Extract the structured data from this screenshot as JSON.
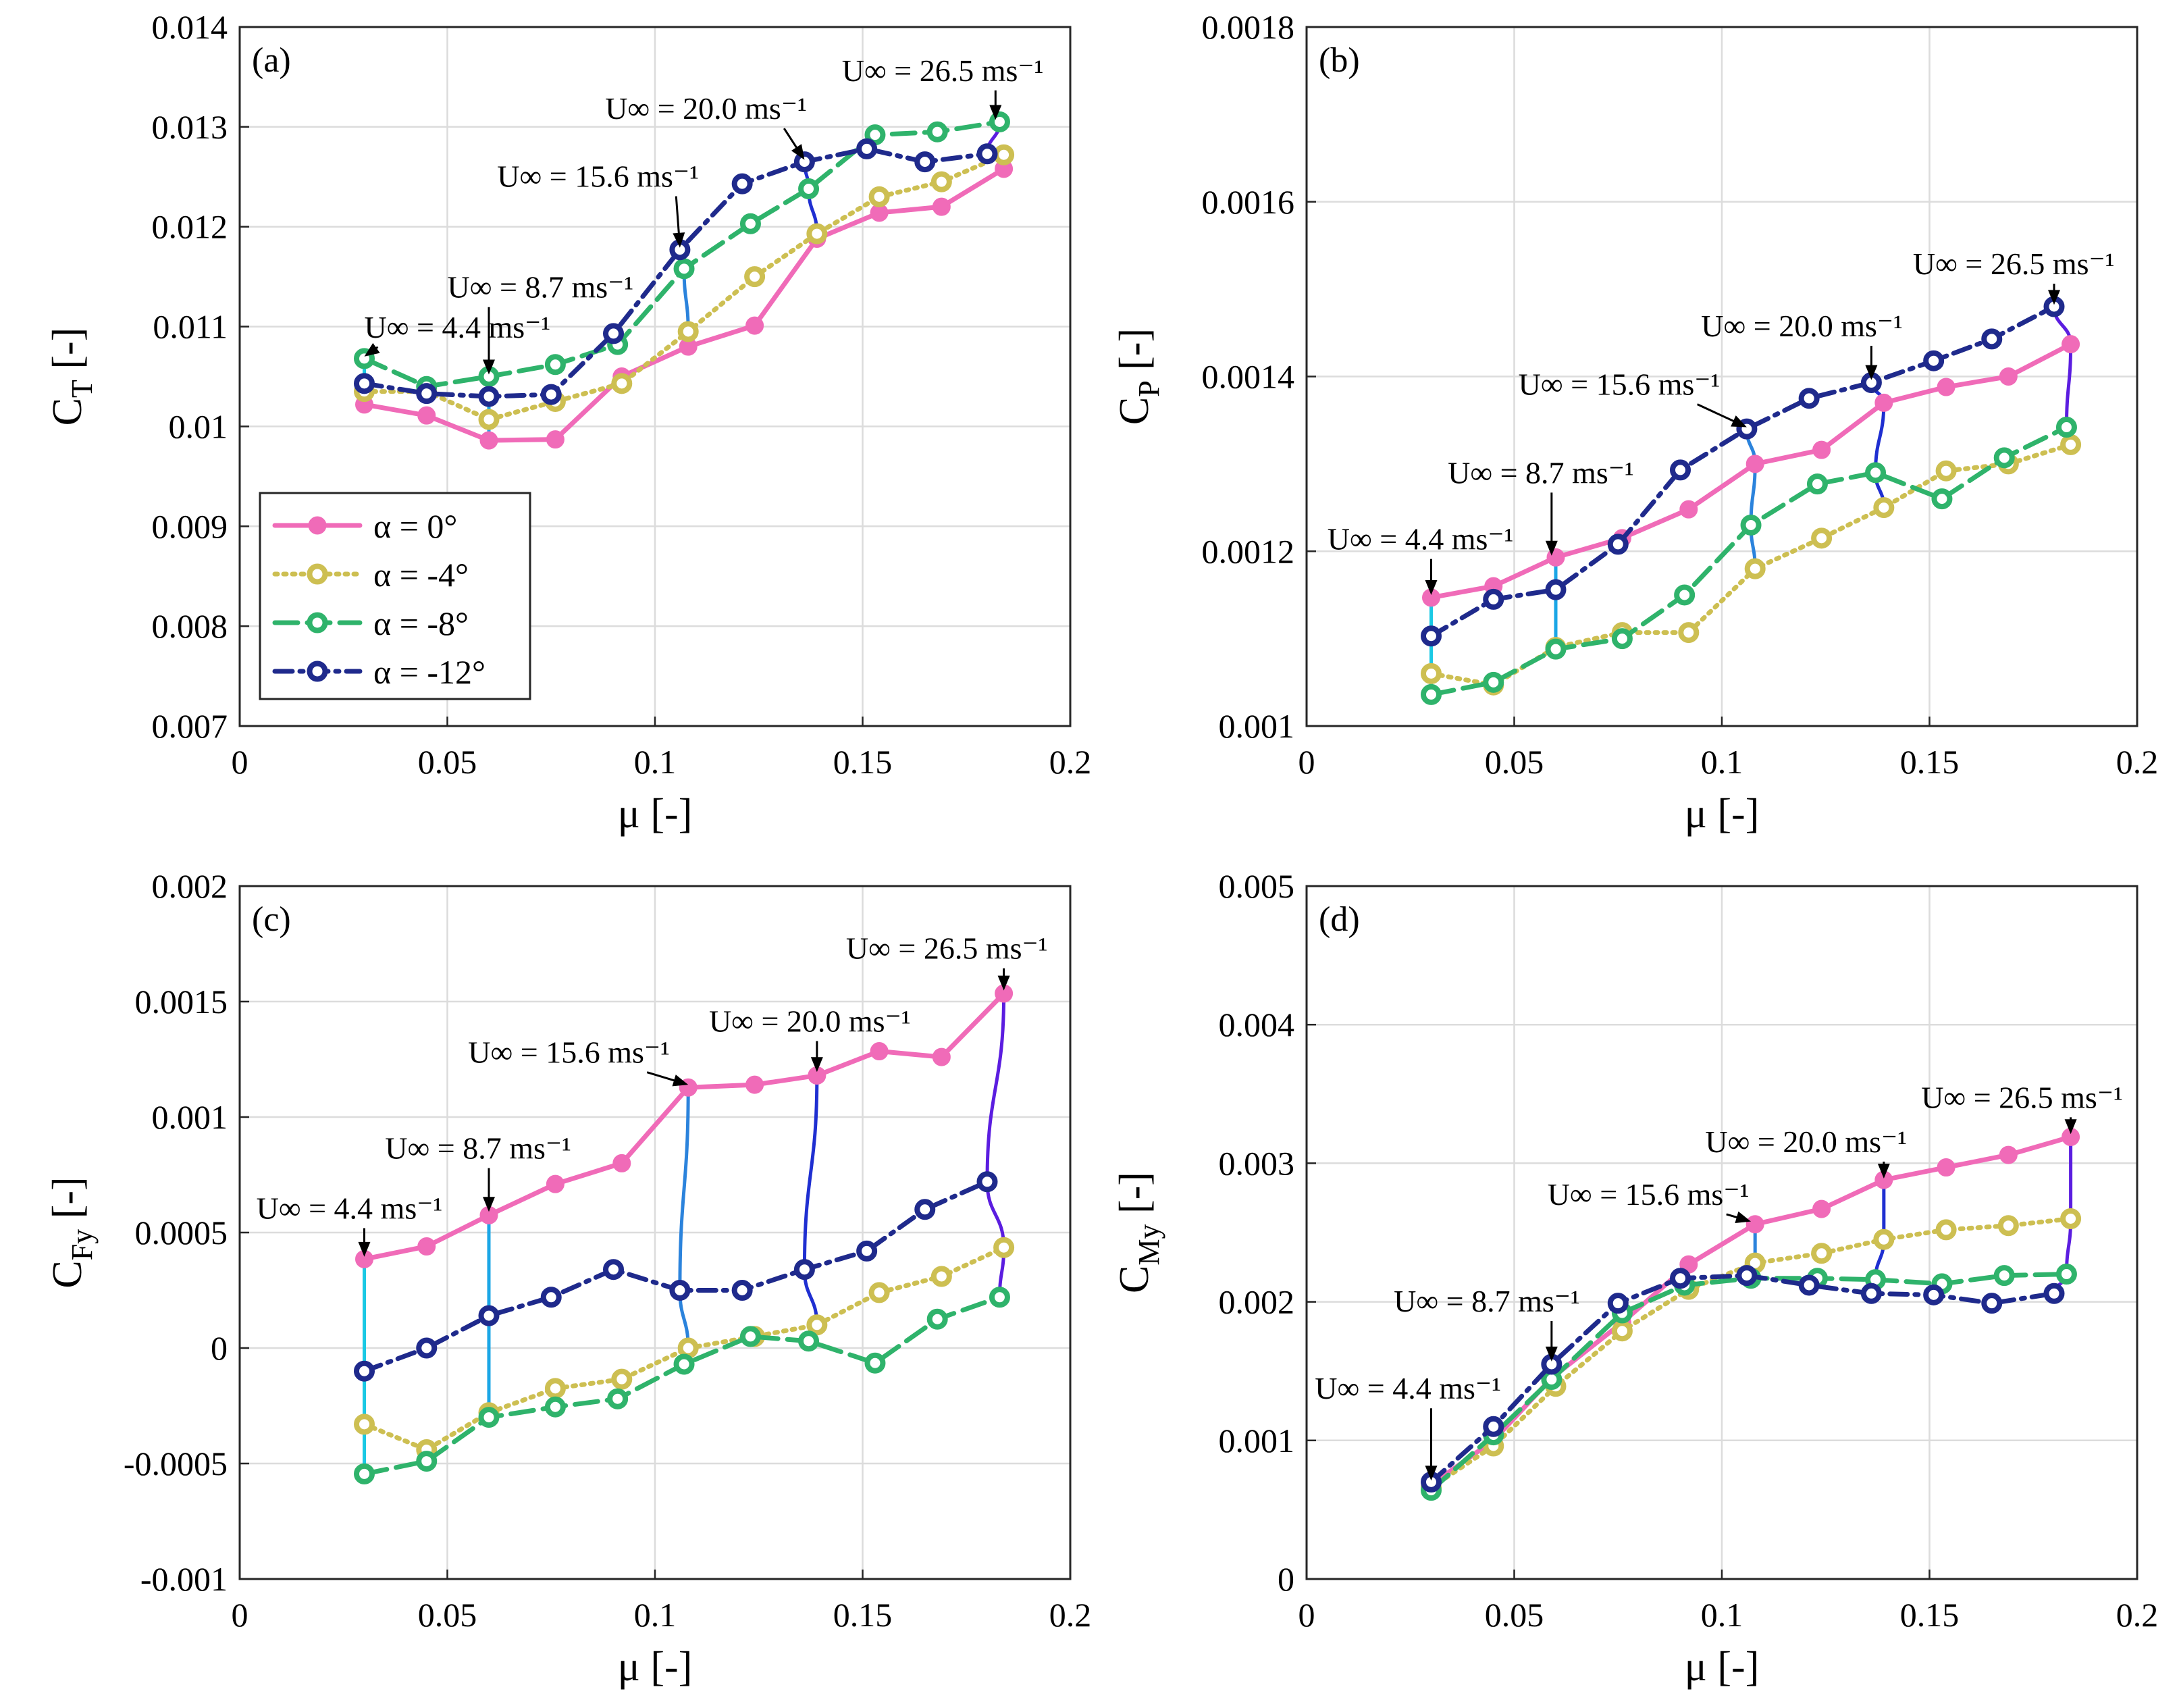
{
  "figure": {
    "series_styles": [
      {
        "key": "a0",
        "color": "#f06bb8",
        "dash": "",
        "filled": true
      },
      {
        "key": "a4",
        "color": "#cdbf52",
        "dash": "4 9",
        "filled": false
      },
      {
        "key": "a8",
        "color": "#2fb36b",
        "dash": "34 14",
        "filled": false
      },
      {
        "key": "a12",
        "color": "#1f2a8c",
        "dash": "26 11 5 11",
        "filled": false
      }
    ],
    "speed_line_colors": [
      "#1ac9e4",
      "#1aa6e6",
      "#2b83dc",
      "#1f2fd1",
      "#5b1de0"
    ]
  },
  "chart_data": [
    {
      "type": "line",
      "panel_label": "(a)",
      "xlabel": "μ [-]",
      "ylabel_main": "C",
      "ylabel_sub": "T",
      "ylabel_tail": " [-]",
      "xlim": [
        0,
        0.2
      ],
      "ylim": [
        0.007,
        0.014
      ],
      "xticks": [
        0,
        0.05,
        0.1,
        0.15,
        0.2
      ],
      "xtick_labels": [
        "0",
        "0.05",
        "0.1",
        "0.15",
        "0.2"
      ],
      "yticks": [
        0.007,
        0.008,
        0.009,
        0.01,
        0.011,
        0.012,
        0.013,
        0.014
      ],
      "ytick_labels": [
        "0.007",
        "0.008",
        "0.009",
        "0.01",
        "0.011",
        "0.012",
        "0.013",
        "0.014"
      ],
      "legend": [
        "α = 0°",
        "α = -4°",
        "α = -8°",
        "α = -12°"
      ],
      "series": [
        {
          "name": "α = 0°",
          "x": [
            0.03,
            0.045,
            0.06,
            0.076,
            0.092,
            0.108,
            0.124,
            0.139,
            0.154,
            0.169,
            0.184
          ],
          "y": [
            0.01022,
            0.01011,
            0.00986,
            0.00987,
            0.0105,
            0.0108,
            0.01101,
            0.01188,
            0.01214,
            0.0122,
            0.01258
          ]
        },
        {
          "name": "α = -4°",
          "x": [
            0.03,
            0.045,
            0.06,
            0.076,
            0.092,
            0.108,
            0.124,
            0.139,
            0.154,
            0.169,
            0.184
          ],
          "y": [
            0.01035,
            0.01035,
            0.01007,
            0.01025,
            0.01043,
            0.01095,
            0.0115,
            0.01193,
            0.0123,
            0.01245,
            0.01272
          ]
        },
        {
          "name": "α = -8°",
          "x": [
            0.03,
            0.045,
            0.06,
            0.076,
            0.091,
            0.107,
            0.123,
            0.137,
            0.153,
            0.168,
            0.183
          ],
          "y": [
            0.01068,
            0.0104,
            0.0105,
            0.01062,
            0.01082,
            0.01158,
            0.01203,
            0.01238,
            0.01292,
            0.01295,
            0.01305
          ]
        },
        {
          "name": "α = -12°",
          "x": [
            0.03,
            0.045,
            0.06,
            0.075,
            0.09,
            0.106,
            0.121,
            0.136,
            0.151,
            0.165,
            0.18
          ],
          "y": [
            0.01043,
            0.01033,
            0.0103,
            0.01032,
            0.01093,
            0.01177,
            0.01243,
            0.01265,
            0.01278,
            0.01265,
            0.01273
          ]
        }
      ],
      "speed_groups": [
        0,
        2,
        5,
        7,
        10
      ],
      "annotations": [
        {
          "text": "U∞ = 4.4 ms⁻¹",
          "tx": 0.03,
          "ty": 0.01089,
          "px": 0.03,
          "py": 0.0107
        },
        {
          "text": "U∞ = 8.7 ms⁻¹",
          "tx": 0.05,
          "ty": 0.01129,
          "px": 0.06,
          "py": 0.01052
        },
        {
          "text": "U∞ = 15.6 ms⁻¹",
          "tx": 0.062,
          "ty": 0.0124,
          "px": 0.106,
          "py": 0.01179
        },
        {
          "text": "U∞ = 20.0 ms⁻¹",
          "tx": 0.088,
          "ty": 0.01308,
          "px": 0.136,
          "py": 0.01267
        },
        {
          "text": "U∞ = 26.5 ms⁻¹",
          "tx": 0.145,
          "ty": 0.01346,
          "px": 0.182,
          "py": 0.01307
        }
      ]
    },
    {
      "type": "line",
      "panel_label": "(b)",
      "xlabel": "μ [-]",
      "ylabel_main": "C",
      "ylabel_sub": "P",
      "ylabel_tail": " [-]",
      "xlim": [
        0,
        0.2
      ],
      "ylim": [
        0.001,
        0.0018
      ],
      "xticks": [
        0,
        0.05,
        0.1,
        0.15,
        0.2
      ],
      "xtick_labels": [
        "0",
        "0.05",
        "0.1",
        "0.15",
        "0.2"
      ],
      "yticks": [
        0.001,
        0.0012,
        0.0014,
        0.0016,
        0.0018
      ],
      "ytick_labels": [
        "0.001",
        "0.0012",
        "0.0014",
        "0.0016",
        "0.0018"
      ],
      "series": [
        {
          "name": "α = 0°",
          "x": [
            0.03,
            0.045,
            0.06,
            0.076,
            0.092,
            0.108,
            0.124,
            0.139,
            0.154,
            0.169,
            0.184
          ],
          "y": [
            0.001147,
            0.00116,
            0.001193,
            0.001215,
            0.001248,
            0.0013,
            0.001316,
            0.00137,
            0.001388,
            0.0014,
            0.001437
          ]
        },
        {
          "name": "α = -4°",
          "x": [
            0.03,
            0.045,
            0.06,
            0.076,
            0.092,
            0.108,
            0.124,
            0.139,
            0.154,
            0.169,
            0.184
          ],
          "y": [
            0.00106,
            0.001047,
            0.00109,
            0.001107,
            0.001107,
            0.00118,
            0.001215,
            0.00125,
            0.001292,
            0.0013,
            0.001322
          ]
        },
        {
          "name": "α = -8°",
          "x": [
            0.03,
            0.045,
            0.06,
            0.076,
            0.091,
            0.107,
            0.123,
            0.137,
            0.153,
            0.168,
            0.183
          ],
          "y": [
            0.001036,
            0.00105,
            0.001088,
            0.0011,
            0.00115,
            0.00123,
            0.001277,
            0.00129,
            0.00126,
            0.001307,
            0.001342
          ]
        },
        {
          "name": "α = -12°",
          "x": [
            0.03,
            0.045,
            0.06,
            0.075,
            0.09,
            0.106,
            0.121,
            0.136,
            0.151,
            0.165,
            0.18
          ],
          "y": [
            0.001103,
            0.001145,
            0.001156,
            0.001208,
            0.001293,
            0.00134,
            0.001375,
            0.001393,
            0.001418,
            0.001443,
            0.00148
          ]
        }
      ],
      "speed_groups": [
        0,
        2,
        5,
        7,
        10
      ],
      "annotations": [
        {
          "text": "U∞ = 4.4 ms⁻¹",
          "tx": 0.005,
          "ty": 0.001202,
          "px": 0.03,
          "py": 0.00115
        },
        {
          "text": "U∞ = 8.7 ms⁻¹",
          "tx": 0.034,
          "ty": 0.001278,
          "px": 0.059,
          "py": 0.001195
        },
        {
          "text": "U∞ = 15.6 ms⁻¹",
          "tx": 0.051,
          "ty": 0.001379,
          "px": 0.106,
          "py": 0.001342
        },
        {
          "text": "U∞ = 20.0 ms⁻¹",
          "tx": 0.095,
          "ty": 0.001446,
          "px": 0.136,
          "py": 0.001396
        },
        {
          "text": "U∞ = 26.5 ms⁻¹",
          "tx": 0.146,
          "ty": 0.001517,
          "px": 0.18,
          "py": 0.001482
        }
      ]
    },
    {
      "type": "line",
      "panel_label": "(c)",
      "xlabel": "μ [-]",
      "ylabel_main": "C",
      "ylabel_sub": "Fy",
      "ylabel_tail": " [-]",
      "xlim": [
        0,
        0.2
      ],
      "ylim": [
        -0.001,
        0.002
      ],
      "xticks": [
        0,
        0.05,
        0.1,
        0.15,
        0.2
      ],
      "xtick_labels": [
        "0",
        "0.05",
        "0.1",
        "0.15",
        "0.2"
      ],
      "yticks": [
        -0.001,
        -0.0005,
        0,
        0.0005,
        0.001,
        0.0015,
        0.002
      ],
      "ytick_labels": [
        "-0.001",
        "-0.0005",
        "0",
        "0.0005",
        "0.001",
        "0.0015",
        "0.002"
      ],
      "series": [
        {
          "name": "α = 0°",
          "x": [
            0.03,
            0.045,
            0.06,
            0.076,
            0.092,
            0.108,
            0.124,
            0.139,
            0.154,
            0.169,
            0.184
          ],
          "y": [
            0.000385,
            0.00044,
            0.000575,
            0.00071,
            0.0008,
            0.001128,
            0.00114,
            0.00118,
            0.001285,
            0.00126,
            0.001535
          ]
        },
        {
          "name": "α = -4°",
          "x": [
            0.03,
            0.045,
            0.06,
            0.076,
            0.092,
            0.108,
            0.124,
            0.139,
            0.154,
            0.169,
            0.184
          ],
          "y": [
            -0.00033,
            -0.00044,
            -0.00028,
            -0.000175,
            -0.000135,
            0.0,
            5e-05,
            0.0001,
            0.00024,
            0.00031,
            0.000435
          ]
        },
        {
          "name": "α = -8°",
          "x": [
            0.03,
            0.045,
            0.06,
            0.076,
            0.091,
            0.107,
            0.123,
            0.137,
            0.153,
            0.168,
            0.183
          ],
          "y": [
            -0.000545,
            -0.00049,
            -0.0003,
            -0.000255,
            -0.00022,
            -7e-05,
            5e-05,
            3e-05,
            -6.5e-05,
            0.000125,
            0.00022
          ]
        },
        {
          "name": "α = -12°",
          "x": [
            0.03,
            0.045,
            0.06,
            0.075,
            0.09,
            0.106,
            0.121,
            0.136,
            0.151,
            0.165,
            0.18
          ],
          "y": [
            -0.0001,
            0.0,
            0.00014,
            0.00022,
            0.00034,
            0.00025,
            0.00025,
            0.00034,
            0.00042,
            0.0006,
            0.00072
          ]
        }
      ],
      "speed_groups": [
        0,
        2,
        5,
        7,
        10
      ],
      "annotations": [
        {
          "text": "U∞ = 4.4 ms⁻¹",
          "tx": 0.004,
          "ty": 0.00056,
          "px": 0.03,
          "py": 0.000395
        },
        {
          "text": "U∞ = 8.7 ms⁻¹",
          "tx": 0.035,
          "ty": 0.00082,
          "px": 0.06,
          "py": 0.00059
        },
        {
          "text": "U∞ = 15.6 ms⁻¹",
          "tx": 0.055,
          "ty": 0.001235,
          "px": 0.108,
          "py": 0.00114
        },
        {
          "text": "U∞ = 20.0 ms⁻¹",
          "tx": 0.113,
          "ty": 0.00137,
          "px": 0.139,
          "py": 0.001195
        },
        {
          "text": "U∞ = 26.5 ms⁻¹",
          "tx": 0.146,
          "ty": 0.001685,
          "px": 0.184,
          "py": 0.001548
        }
      ]
    },
    {
      "type": "line",
      "panel_label": "(d)",
      "xlabel": "μ [-]",
      "ylabel_main": "C",
      "ylabel_sub": "My",
      "ylabel_tail": " [-]",
      "xlim": [
        0,
        0.2
      ],
      "ylim": [
        0,
        0.005
      ],
      "xticks": [
        0,
        0.05,
        0.1,
        0.15,
        0.2
      ],
      "xtick_labels": [
        "0",
        "0.05",
        "0.1",
        "0.15",
        "0.2"
      ],
      "yticks": [
        0,
        0.001,
        0.002,
        0.003,
        0.004,
        0.005
      ],
      "ytick_labels": [
        "0",
        "0.001",
        "0.002",
        "0.003",
        "0.004",
        "0.005"
      ],
      "series": [
        {
          "name": "α = 0°",
          "x": [
            0.03,
            0.045,
            0.059,
            0.076,
            0.092,
            0.108,
            0.124,
            0.139,
            0.154,
            0.169,
            0.184
          ],
          "y": [
            0.00068,
            0.001,
            0.00145,
            0.00185,
            0.00227,
            0.00256,
            0.00267,
            0.00288,
            0.00297,
            0.00306,
            0.00319
          ]
        },
        {
          "name": "α = -4°",
          "x": [
            0.03,
            0.045,
            0.06,
            0.076,
            0.092,
            0.108,
            0.124,
            0.139,
            0.154,
            0.169,
            0.184
          ],
          "y": [
            0.00066,
            0.00096,
            0.00139,
            0.00179,
            0.00209,
            0.00228,
            0.00235,
            0.00245,
            0.00252,
            0.00255,
            0.0026
          ]
        },
        {
          "name": "α = -8°",
          "x": [
            0.03,
            0.045,
            0.059,
            0.076,
            0.091,
            0.107,
            0.123,
            0.137,
            0.153,
            0.168,
            0.183
          ],
          "y": [
            0.00064,
            0.00104,
            0.00144,
            0.00192,
            0.00212,
            0.00217,
            0.00217,
            0.00216,
            0.00213,
            0.00219,
            0.0022
          ]
        },
        {
          "name": "α = -12°",
          "x": [
            0.03,
            0.045,
            0.059,
            0.075,
            0.09,
            0.106,
            0.121,
            0.136,
            0.151,
            0.165,
            0.18
          ],
          "y": [
            0.0007,
            0.0011,
            0.00155,
            0.00199,
            0.00217,
            0.00219,
            0.00212,
            0.00206,
            0.00205,
            0.00199,
            0.00206
          ]
        }
      ],
      "speed_groups": [
        0,
        2,
        5,
        7,
        10
      ],
      "annotations": [
        {
          "text": "U∞ = 4.4 ms⁻¹",
          "tx": 0.002,
          "ty": 0.0013,
          "px": 0.03,
          "py": 0.00071
        },
        {
          "text": "U∞ = 8.7 ms⁻¹",
          "tx": 0.021,
          "ty": 0.00193,
          "px": 0.059,
          "py": 0.00157
        },
        {
          "text": "U∞ = 15.6 ms⁻¹",
          "tx": 0.058,
          "ty": 0.0027,
          "px": 0.107,
          "py": 0.00258
        },
        {
          "text": "U∞ = 20.0 ms⁻¹",
          "tx": 0.096,
          "ty": 0.00308,
          "px": 0.139,
          "py": 0.00289
        },
        {
          "text": "U∞ = 26.5 ms⁻¹",
          "tx": 0.148,
          "ty": 0.0034,
          "px": 0.184,
          "py": 0.00321
        }
      ]
    }
  ]
}
